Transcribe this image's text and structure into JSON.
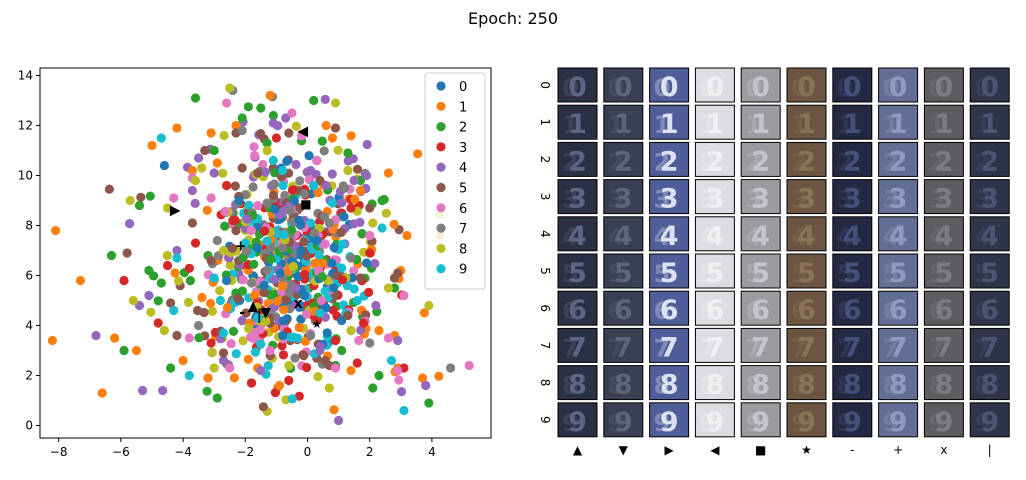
{
  "title": "Epoch: 250",
  "colors": [
    "#1f77b4",
    "#ff7f0e",
    "#2ca02c",
    "#d62728",
    "#9467bd",
    "#8c564b",
    "#e377c2",
    "#7f7f7f",
    "#bcbd22",
    "#17becf"
  ],
  "chart_data": [
    {
      "type": "scatter",
      "title": "",
      "xlabel": "",
      "ylabel": "",
      "xlim": [
        -8.6,
        5.9
      ],
      "ylim": [
        -0.5,
        14.3
      ],
      "xticks": [
        -8,
        -6,
        -4,
        -2,
        0,
        2,
        4
      ],
      "yticks": [
        0,
        2,
        4,
        6,
        8,
        10,
        12,
        14
      ],
      "grid": false,
      "legend": {
        "placement": "top-right",
        "entries": [
          "0",
          "1",
          "2",
          "3",
          "4",
          "5",
          "6",
          "7",
          "8",
          "9"
        ]
      },
      "series": [
        {
          "name": "0",
          "color": "#1f77b4",
          "center": [
            -0.6,
            6.5
          ],
          "spread": [
            1.1,
            1.8
          ],
          "points": [
            [
              -4.6,
              10.4
            ],
            [
              -0.2,
              7.0
            ],
            [
              0.6,
              4.7
            ],
            [
              -1.4,
              5.6
            ],
            [
              1.9,
              6.5
            ],
            [
              -2.2,
              9.0
            ],
            [
              -0.8,
              3.6
            ],
            [
              0.3,
              7.4
            ],
            [
              1.1,
              4.2
            ],
            [
              -1.6,
              7.1
            ],
            [
              -0.1,
              5.2
            ],
            [
              -2.6,
              5.8
            ]
          ]
        },
        {
          "name": "1",
          "color": "#ff7f0e",
          "center": [
            -0.3,
            6.0
          ],
          "spread": [
            1.9,
            2.4
          ],
          "points": [
            [
              -8.1,
              7.8
            ],
            [
              -8.2,
              3.4
            ],
            [
              -7.3,
              5.8
            ],
            [
              -6.6,
              1.3
            ],
            [
              -6.2,
              3.5
            ],
            [
              -5.5,
              3.0
            ],
            [
              -4.2,
              11.9
            ],
            [
              -4.0,
              2.6
            ],
            [
              -3.1,
              11.7
            ],
            [
              -3.2,
              1.9
            ],
            [
              -2.3,
              12.0
            ],
            [
              3.2,
              7.6
            ],
            [
              2.6,
              10.1
            ],
            [
              3.7,
              1.9
            ],
            [
              2.8,
              3.6
            ],
            [
              -1.2,
              13.2
            ],
            [
              -3.7,
              10.2
            ],
            [
              1.4,
              2.2
            ],
            [
              -1.6,
              2.3
            ],
            [
              0.8,
              11.5
            ],
            [
              3.0,
              6.2
            ],
            [
              -2.9,
              10.5
            ],
            [
              2.3,
              3.8
            ],
            [
              -0.9,
              1.6
            ],
            [
              0.6,
              12.0
            ],
            [
              -5.0,
              11.2
            ],
            [
              2.9,
              2.3
            ],
            [
              1.7,
              9.4
            ]
          ]
        },
        {
          "name": "2",
          "color": "#2ca02c",
          "center": [
            -0.7,
            6.5
          ],
          "spread": [
            1.9,
            2.5
          ],
          "points": [
            [
              -6.3,
              6.8
            ],
            [
              -5.9,
              3.0
            ],
            [
              -5.4,
              8.8
            ],
            [
              -5.1,
              6.2
            ],
            [
              -3.6,
              13.1
            ],
            [
              -1.5,
              12.7
            ],
            [
              -2.9,
              1.1
            ],
            [
              -1.3,
              11.3
            ],
            [
              1.7,
              9.8
            ],
            [
              3.9,
              0.9
            ],
            [
              2.1,
              1.5
            ],
            [
              -2.1,
              12.3
            ],
            [
              2.3,
              2.0
            ],
            [
              -3.0,
              11.0
            ],
            [
              0.2,
              13.0
            ],
            [
              -1.8,
              1.7
            ],
            [
              -4.4,
              2.3
            ],
            [
              0.9,
              2.4
            ],
            [
              1.1,
              3.0
            ],
            [
              -4.7,
              5.7
            ],
            [
              2.4,
              9.0
            ],
            [
              2.8,
              5.5
            ],
            [
              -3.2,
              6.8
            ],
            [
              1.3,
              10.9
            ],
            [
              -1.1,
              12.4
            ]
          ]
        },
        {
          "name": "3",
          "color": "#d62728",
          "center": [
            -0.3,
            5.8
          ],
          "spread": [
            1.2,
            2.1
          ],
          "points": [
            [
              -5.9,
              5.8
            ],
            [
              -4.5,
              6.4
            ],
            [
              -4.8,
              4.1
            ],
            [
              -2.6,
              9.6
            ],
            [
              -1.8,
              1.7
            ],
            [
              1.8,
              4.1
            ],
            [
              1.4,
              8.7
            ],
            [
              3.1,
              2.3
            ],
            [
              -2.4,
              8.2
            ],
            [
              0.3,
              10.6
            ],
            [
              -3.1,
              3.3
            ],
            [
              2.0,
              6.9
            ],
            [
              -0.6,
              1.8
            ],
            [
              -1.0,
              11.5
            ],
            [
              1.6,
              2.5
            ],
            [
              -3.6,
              7.3
            ],
            [
              0.9,
              3.4
            ]
          ]
        },
        {
          "name": "4",
          "color": "#9467bd",
          "center": [
            -0.8,
            7.5
          ],
          "spread": [
            1.7,
            2.4
          ],
          "points": [
            [
              -6.8,
              3.6
            ],
            [
              -5.3,
              1.4
            ],
            [
              -5.4,
              4.8
            ],
            [
              -5.1,
              5.2
            ],
            [
              -3.5,
              10.7
            ],
            [
              -3.0,
              10.1
            ],
            [
              -1.1,
              12.1
            ],
            [
              0.1,
              10.2
            ],
            [
              1.0,
              0.2
            ],
            [
              1.5,
              9.8
            ],
            [
              -0.7,
              12.3
            ],
            [
              3.8,
              1.6
            ],
            [
              2.2,
              4.8
            ],
            [
              -3.7,
              9.4
            ],
            [
              1.9,
              10.0
            ],
            [
              -2.7,
              2.6
            ],
            [
              0.6,
              9.6
            ],
            [
              -4.2,
              7.0
            ],
            [
              2.9,
              3.4
            ],
            [
              -1.5,
              2.2
            ],
            [
              0.4,
              3.0
            ]
          ]
        },
        {
          "name": "5",
          "color": "#8c564b",
          "center": [
            -0.8,
            6.8
          ],
          "spread": [
            1.6,
            2.3
          ],
          "points": [
            [
              -5.8,
              6.9
            ],
            [
              -3.3,
              11.0
            ],
            [
              -2.3,
              11.7
            ],
            [
              -2.1,
              10.3
            ],
            [
              -1.6,
              10.1
            ],
            [
              -1.1,
              9.2
            ],
            [
              -0.6,
              11.7
            ],
            [
              0.4,
              9.8
            ],
            [
              0.9,
              11.9
            ],
            [
              -4.4,
              4.9
            ],
            [
              -2.7,
              2.9
            ],
            [
              2.9,
              6.1
            ],
            [
              -3.7,
              8.1
            ],
            [
              2.0,
              8.7
            ],
            [
              -2.3,
              7.8
            ],
            [
              1.3,
              4.4
            ],
            [
              -1.2,
              2.8
            ],
            [
              0.7,
              2.4
            ],
            [
              -3.1,
              6.6
            ],
            [
              1.7,
              5.9
            ],
            [
              -4.2,
              3.6
            ]
          ]
        },
        {
          "name": "6",
          "color": "#e377c2",
          "center": [
            -0.6,
            6.2
          ],
          "spread": [
            1.3,
            2.2
          ],
          "points": [
            [
              -4.3,
              9.1
            ],
            [
              -3.7,
              9.9
            ],
            [
              -2.6,
              12.9
            ],
            [
              -1.6,
              8.8
            ],
            [
              -0.5,
              12.5
            ],
            [
              2.0,
              7.6
            ],
            [
              5.2,
              2.4
            ],
            [
              2.9,
              2.2
            ],
            [
              -3.8,
              3.5
            ],
            [
              0.9,
              2.3
            ],
            [
              -2.5,
              2.3
            ],
            [
              -1.7,
              10.8
            ],
            [
              3.1,
              5.2
            ],
            [
              0.3,
              10.6
            ],
            [
              -1.2,
              3.0
            ],
            [
              -3.1,
              9.1
            ],
            [
              2.6,
              3.5
            ]
          ]
        },
        {
          "name": "7",
          "color": "#7f7f7f",
          "center": [
            -0.6,
            6.6
          ],
          "spread": [
            1.2,
            2.0
          ],
          "points": [
            [
              4.6,
              2.3
            ],
            [
              -2.4,
              13.4
            ],
            [
              -2.1,
              11.8
            ],
            [
              -1.3,
              8.9
            ],
            [
              1.4,
              6.7
            ],
            [
              0.7,
              8.1
            ],
            [
              -3.5,
              4.0
            ],
            [
              2.0,
              3.3
            ],
            [
              -0.4,
              2.7
            ],
            [
              -1.8,
              5.7
            ],
            [
              1.2,
              9.5
            ],
            [
              -2.9,
              7.4
            ],
            [
              0.1,
              3.6
            ]
          ]
        },
        {
          "name": "8",
          "color": "#bcbd22",
          "center": [
            -0.8,
            6.6
          ],
          "spread": [
            1.6,
            2.3
          ],
          "points": [
            [
              -5.7,
              9.0
            ],
            [
              -5.6,
              5.0
            ],
            [
              -4.6,
              3.8
            ],
            [
              -4.5,
              8.7
            ],
            [
              -3.6,
              9.8
            ],
            [
              -2.5,
              13.5
            ],
            [
              -3.0,
              2.3
            ],
            [
              0.9,
              12.9
            ],
            [
              3.9,
              4.8
            ],
            [
              0.7,
              1.5
            ],
            [
              1.4,
              3.8
            ],
            [
              -1.3,
              11.0
            ],
            [
              2.1,
              8.1
            ],
            [
              -3.4,
              10.3
            ],
            [
              2.6,
              5.5
            ],
            [
              -2.7,
              7.0
            ],
            [
              1.3,
              10.2
            ],
            [
              -0.6,
              2.4
            ]
          ]
        },
        {
          "name": "9",
          "color": "#17becf",
          "center": [
            -0.3,
            6.2
          ],
          "spread": [
            1.0,
            1.8
          ],
          "points": [
            [
              -4.7,
              11.5
            ],
            [
              -4.2,
              6.7
            ],
            [
              -3.0,
              5.9
            ],
            [
              3.1,
              0.6
            ],
            [
              2.7,
              2.6
            ],
            [
              2.4,
              7.9
            ],
            [
              -1.1,
              10.6
            ],
            [
              -4.3,
              4.6
            ],
            [
              -2.7,
              3.7
            ],
            [
              1.1,
              6.3
            ],
            [
              -3.8,
              2.0
            ],
            [
              0.8,
              8.9
            ],
            [
              -1.6,
              4.3
            ],
            [
              0.4,
              4.5
            ],
            [
              -2.0,
              7.3
            ],
            [
              -0.8,
              10.2
            ],
            [
              1.6,
              5.0
            ],
            [
              -2.8,
              5.0
            ],
            [
              0.2,
              9.6
            ]
          ]
        }
      ],
      "markers": [
        {
          "symbol": "▲",
          "x": -1.75,
          "y": 4.8
        },
        {
          "symbol": "▼",
          "x": -1.35,
          "y": 4.55
        },
        {
          "symbol": "▶",
          "x": -4.25,
          "y": 8.65
        },
        {
          "symbol": "◀",
          "x": -0.15,
          "y": 11.8
        },
        {
          "symbol": "■",
          "x": -0.05,
          "y": 8.9
        },
        {
          "symbol": "★",
          "x": 0.3,
          "y": 4.1
        },
        {
          "symbol": "-",
          "x": -2.1,
          "y": 4.55
        },
        {
          "symbol": "+",
          "x": -2.15,
          "y": 7.2
        },
        {
          "symbol": "x",
          "x": -0.3,
          "y": 4.9
        },
        {
          "symbol": "|",
          "x": -1.55,
          "y": 4.45
        }
      ]
    },
    {
      "type": "image_grid",
      "title": "",
      "rows": [
        "0",
        "1",
        "2",
        "3",
        "4",
        "5",
        "6",
        "7",
        "8",
        "9"
      ],
      "columns": [
        "▲",
        "▼",
        "▶",
        "◀",
        "■",
        "★",
        "-",
        "+",
        "x",
        "|"
      ],
      "column_styles": [
        {
          "bg": "#2a3145",
          "digit": "#5c6584"
        },
        {
          "bg": "#3a3f52",
          "digit": "#5f6478"
        },
        {
          "bg": "#4f5d99",
          "digit": "#dde2f3"
        },
        {
          "bg": "#dcdde2",
          "digit": "#f0f0f3"
        },
        {
          "bg": "#9a9ca1",
          "digit": "#c4c5c9"
        },
        {
          "bg": "#6c5641",
          "digit": "#8a7158"
        },
        {
          "bg": "#232943",
          "digit": "#45507a"
        },
        {
          "bg": "#636e94",
          "digit": "#8f9abd"
        },
        {
          "bg": "#5b5d61",
          "digit": "#7a7c80"
        },
        {
          "bg": "#2f3448",
          "digit": "#4d5370"
        }
      ]
    }
  ]
}
